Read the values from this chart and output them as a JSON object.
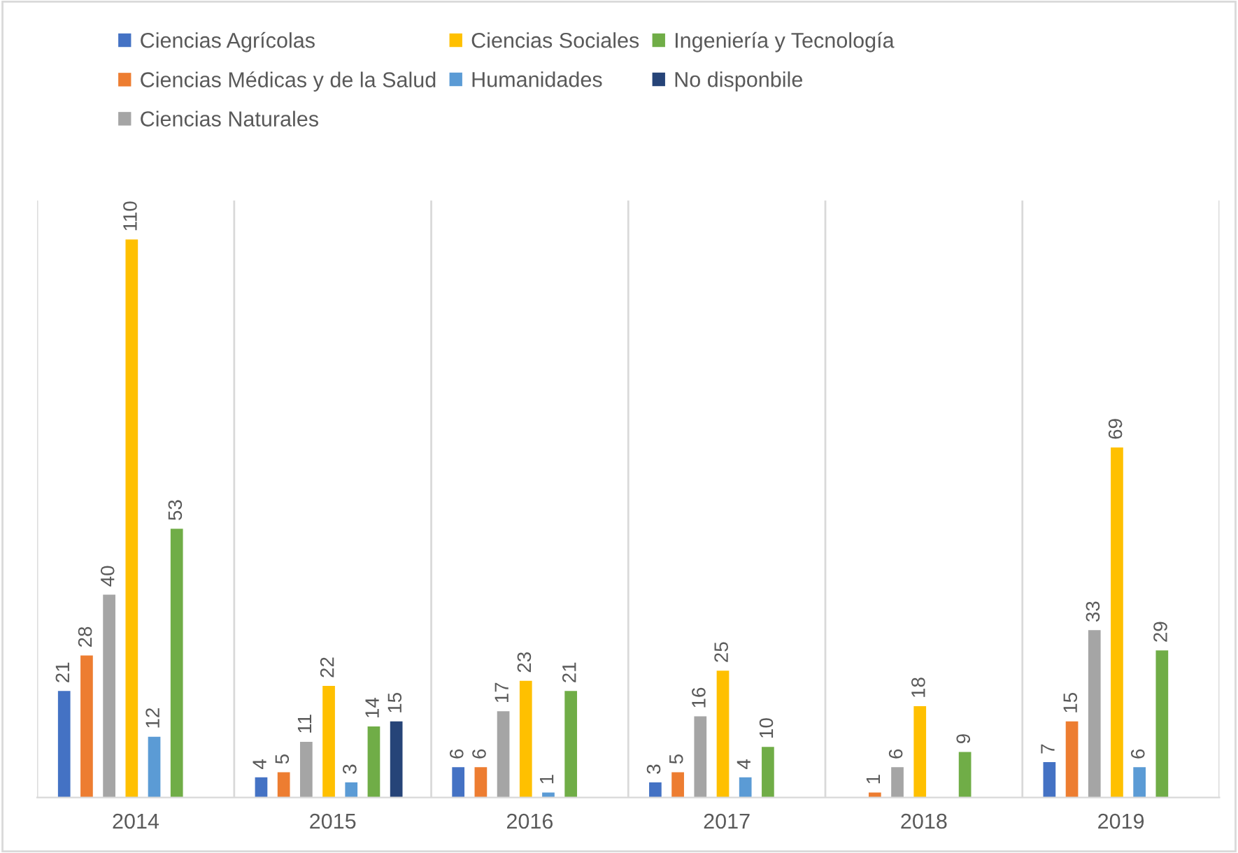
{
  "chart_data": {
    "type": "bar",
    "categories": [
      "2014",
      "2015",
      "2016",
      "2017",
      "2018",
      "2019"
    ],
    "series": [
      {
        "name": "Ciencias Agrícolas",
        "color": "#4472c4",
        "values": [
          21,
          4,
          6,
          3,
          null,
          7
        ]
      },
      {
        "name": "Ciencias Médicas y de la Salud",
        "color": "#ed7d31",
        "values": [
          28,
          5,
          6,
          5,
          1,
          15
        ]
      },
      {
        "name": "Ciencias Naturales",
        "color": "#a5a5a5",
        "values": [
          40,
          11,
          17,
          16,
          6,
          33
        ]
      },
      {
        "name": "Ciencias Sociales",
        "color": "#ffc000",
        "values": [
          110,
          22,
          23,
          25,
          18,
          69
        ]
      },
      {
        "name": "Humanidades",
        "color": "#5b9bd5",
        "values": [
          12,
          3,
          1,
          4,
          null,
          6
        ]
      },
      {
        "name": "Ingeniería y Tecnología",
        "color": "#70ad47",
        "values": [
          53,
          14,
          21,
          10,
          9,
          29
        ]
      },
      {
        "name": "No disponbile",
        "color": "#264478",
        "values": [
          null,
          15,
          null,
          null,
          null,
          null
        ]
      }
    ],
    "data_labels": true,
    "legend": "top",
    "grid": "x"
  }
}
